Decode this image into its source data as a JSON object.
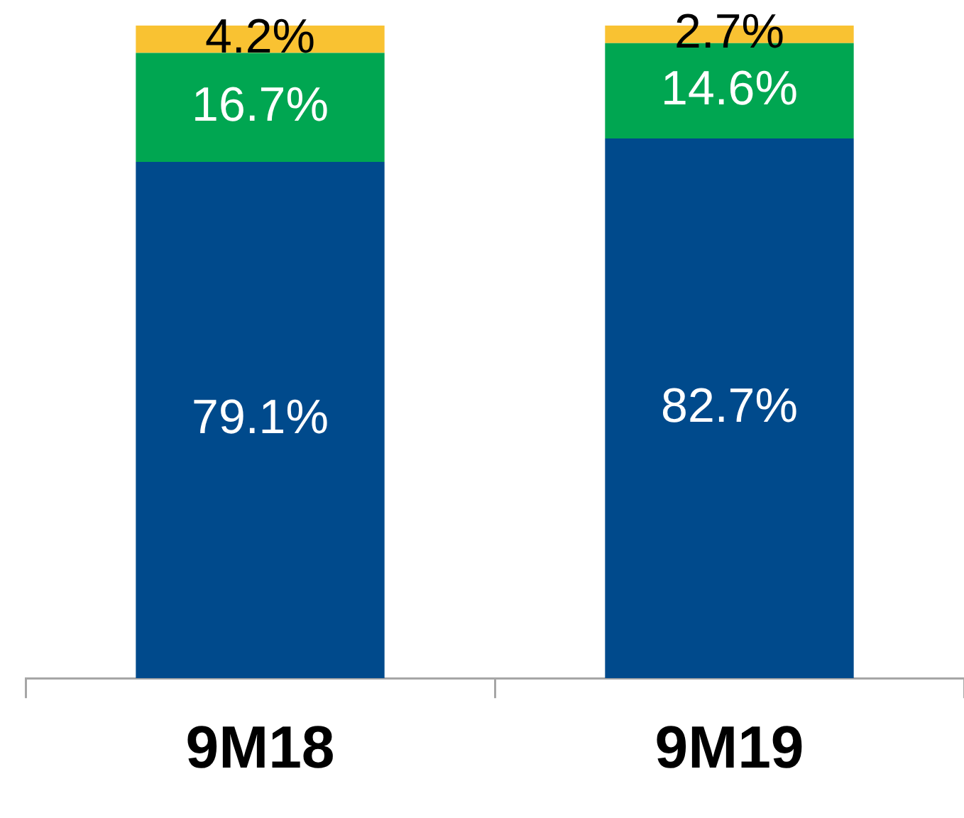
{
  "chart_data": {
    "type": "bar",
    "stacked": true,
    "categories": [
      "9M18",
      "9M19"
    ],
    "series": [
      {
        "color": "#004a8c",
        "values": [
          79.1,
          82.7
        ],
        "value_labels": [
          "79.1%",
          "82.7%"
        ]
      },
      {
        "color": "#00a651",
        "values": [
          16.7,
          14.6
        ],
        "value_labels": [
          "16.7%",
          "14.6%"
        ]
      },
      {
        "color": "#f9c232",
        "values": [
          4.2,
          2.7
        ],
        "value_labels": [
          "4.2%",
          "2.7%"
        ]
      }
    ],
    "tick_labels": "x",
    "grid": false,
    "legend": false
  }
}
